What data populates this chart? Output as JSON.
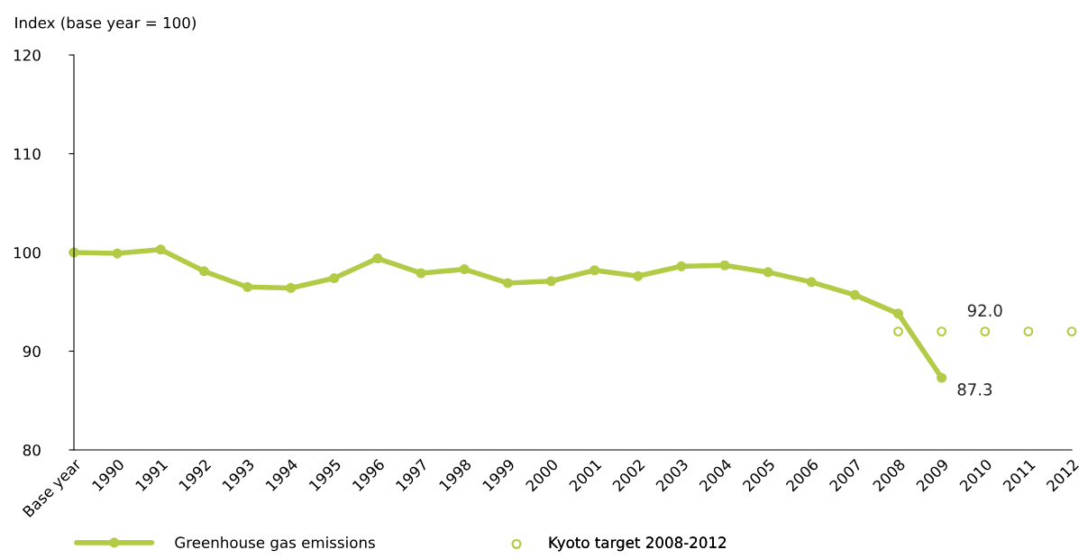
{
  "chart_data": {
    "type": "line",
    "ylabel": "Index (base year = 100)",
    "categories": [
      "Base year",
      "1990",
      "1991",
      "1992",
      "1993",
      "1994",
      "1995",
      "1996",
      "1997",
      "1998",
      "1999",
      "2000",
      "2001",
      "2002",
      "2003",
      "2004",
      "2005",
      "2006",
      "2007",
      "2008",
      "2009",
      "2010",
      "2011",
      "2012"
    ],
    "series": [
      {
        "name": "Greenhouse gas emissions",
        "color": "#b2cb46",
        "marker": "circle",
        "values": [
          100.0,
          99.9,
          100.3,
          98.1,
          96.5,
          96.4,
          97.4,
          99.4,
          97.9,
          98.3,
          96.9,
          97.1,
          98.2,
          97.6,
          98.6,
          98.7,
          98.0,
          97.0,
          95.7,
          93.8,
          87.3,
          null,
          null,
          null
        ]
      },
      {
        "name": "Kyoto target 2008-2012",
        "type": "scatter",
        "color": "#b2cb46",
        "marker": "circle",
        "values": [
          null,
          null,
          null,
          null,
          null,
          null,
          null,
          null,
          null,
          null,
          null,
          null,
          null,
          null,
          null,
          null,
          null,
          null,
          null,
          92.0,
          92.0,
          92.0,
          92.0,
          92.0
        ]
      }
    ],
    "annotations": [
      {
        "text": "87.3",
        "x": "2009",
        "y": 87.3
      },
      {
        "text": "92.0",
        "x": "2010",
        "y": 92.0
      }
    ],
    "ylim": [
      80,
      120
    ],
    "yticks": [
      80,
      90,
      100,
      110,
      120
    ],
    "grid": false,
    "legend": "bottom"
  }
}
